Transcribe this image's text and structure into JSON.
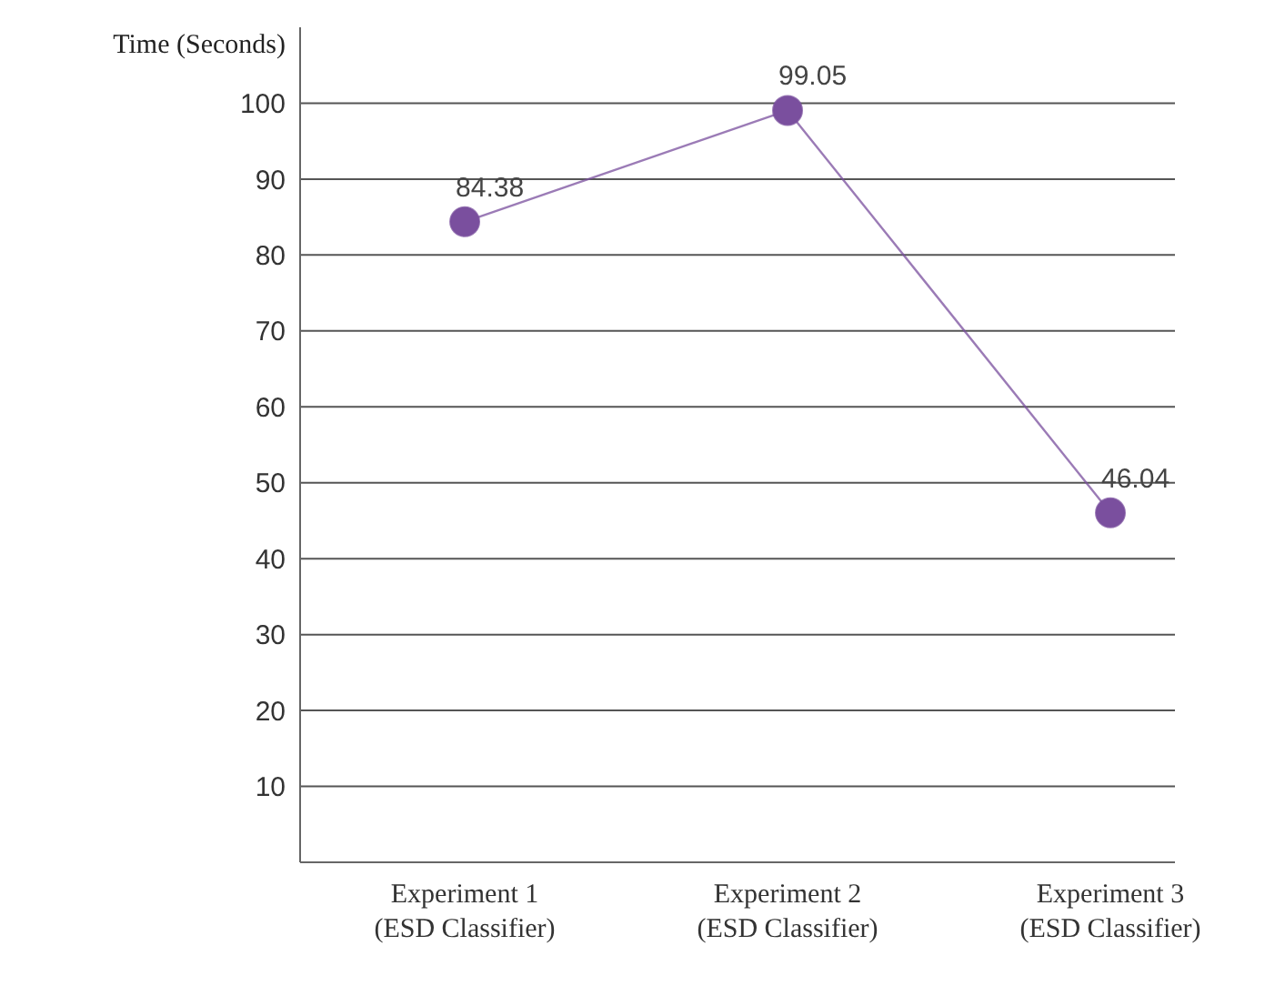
{
  "chart_data": {
    "type": "line",
    "ylabel": "Time (Seconds)",
    "categories": [
      "Experiment 1\n(ESD Classifier)",
      "Experiment 2\n(ESD Classifier)",
      "Experiment 3\n(ESD Classifier)"
    ],
    "series": [
      {
        "color": "#7a4f9e",
        "values": [
          84.38,
          99.05,
          46.04
        ]
      }
    ],
    "ylim": [
      0,
      110
    ],
    "yticks": [
      10,
      20,
      30,
      40,
      50,
      60,
      70,
      80,
      90,
      100
    ],
    "grid": "y",
    "marker": "circle",
    "line_style": "solid",
    "data_labels": true,
    "legend": false
  }
}
